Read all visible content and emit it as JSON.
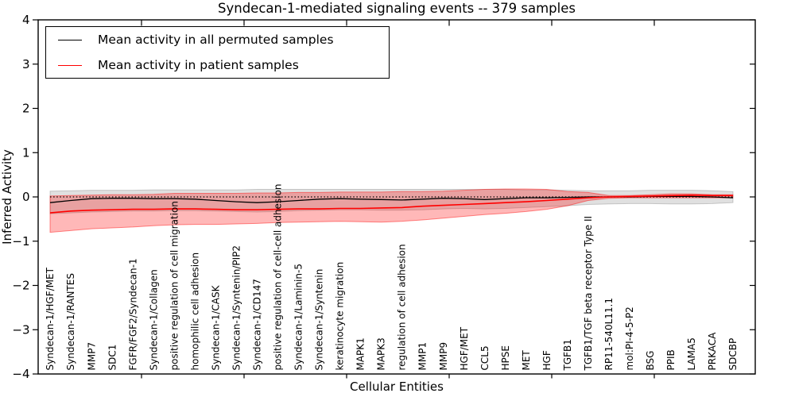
{
  "chart_data": {
    "type": "line",
    "title": "Syndecan-1-mediated signaling events -- 379 samples",
    "xlabel": "Cellular Entities",
    "ylabel": "Inferred Activity",
    "ylim": [
      -4,
      4
    ],
    "y_tick_labels": [
      "4",
      "3",
      "2",
      "1",
      "0",
      "−1",
      "−2",
      "−3",
      "−4"
    ],
    "grid": false,
    "legend_position": "upper left",
    "zero_reference_line": 0,
    "categories": [
      "Syndecan-1/HGF/MET",
      "Syndecan-1/RANTES",
      "MMP7",
      "SDC1",
      "FGFR/FGF2/Syndecan-1",
      "Syndecan-1/Collagen",
      "positive regulation of cell migration",
      "homophilic cell adhesion",
      "Syndecan-1/CASK",
      "Syndecan-1/Syntenin/PIP2",
      "Syndecan-1/CD147",
      "positive regulation of cell-cell adhesion",
      "Syndecan-1/Laminin-5",
      "Syndecan-1/Syntenin",
      "keratinocyte migration",
      "MAPK1",
      "MAPK3",
      "regulation of cell adhesion",
      "MMP1",
      "MMP9",
      "HGF/MET",
      "CCL5",
      "HPSE",
      "MET",
      "HGF",
      "TGFB1",
      "TGFB1/TGF beta receptor Type II",
      "RP11-540L11.1",
      "mol:PI-4-5-P2",
      "BSG",
      "PPIB",
      "LAMA5",
      "PRKACA",
      "SDCBP"
    ],
    "series": [
      {
        "name": "Mean activity in all permuted samples",
        "color": "#000000",
        "values": [
          -0.13,
          -0.08,
          -0.04,
          -0.03,
          -0.03,
          -0.04,
          -0.04,
          -0.05,
          -0.08,
          -0.11,
          -0.13,
          -0.11,
          -0.08,
          -0.05,
          -0.04,
          -0.05,
          -0.06,
          -0.07,
          -0.05,
          -0.03,
          -0.04,
          -0.06,
          -0.04,
          -0.02,
          -0.02,
          -0.01,
          0.0,
          0.0,
          0.0,
          0.01,
          0.01,
          0.01,
          0.0,
          -0.02
        ]
      },
      {
        "name": "Mean activity in patient samples",
        "color": "#ff0000",
        "values": [
          -0.36,
          -0.32,
          -0.3,
          -0.29,
          -0.28,
          -0.28,
          -0.27,
          -0.27,
          -0.28,
          -0.29,
          -0.29,
          -0.28,
          -0.27,
          -0.27,
          -0.26,
          -0.26,
          -0.25,
          -0.24,
          -0.21,
          -0.19,
          -0.17,
          -0.15,
          -0.13,
          -0.11,
          -0.08,
          -0.05,
          -0.02,
          0.0,
          0.01,
          0.02,
          0.03,
          0.04,
          0.03,
          0.03
        ]
      }
    ],
    "bands": [
      {
        "name": "permuted samples activity range",
        "fill": "rgba(0,0,0,0.12)",
        "edge": "rgba(0,0,0,0.18)",
        "top": [
          0.13,
          0.14,
          0.15,
          0.15,
          0.15,
          0.16,
          0.16,
          0.16,
          0.16,
          0.16,
          0.17,
          0.17,
          0.17,
          0.17,
          0.17,
          0.17,
          0.17,
          0.17,
          0.17,
          0.17,
          0.17,
          0.17,
          0.17,
          0.16,
          0.16,
          0.15,
          0.14,
          0.14,
          0.14,
          0.15,
          0.15,
          0.15,
          0.14,
          0.12
        ],
        "bottom": [
          -0.38,
          -0.36,
          -0.34,
          -0.33,
          -0.32,
          -0.32,
          -0.31,
          -0.31,
          -0.32,
          -0.33,
          -0.34,
          -0.33,
          -0.31,
          -0.3,
          -0.29,
          -0.29,
          -0.3,
          -0.3,
          -0.29,
          -0.27,
          -0.26,
          -0.27,
          -0.26,
          -0.24,
          -0.22,
          -0.2,
          -0.17,
          -0.16,
          -0.15,
          -0.15,
          -0.16,
          -0.16,
          -0.15,
          -0.13
        ]
      },
      {
        "name": "patient samples activity range",
        "fill": "rgba(255,0,0,0.28)",
        "edge": "rgba(255,0,0,0.45)",
        "top": [
          0.02,
          0.03,
          0.04,
          0.05,
          0.05,
          0.06,
          0.08,
          0.08,
          0.08,
          0.08,
          0.09,
          0.09,
          0.1,
          0.1,
          0.11,
          0.11,
          0.11,
          0.12,
          0.12,
          0.13,
          0.15,
          0.17,
          0.18,
          0.18,
          0.17,
          0.12,
          0.1,
          0.03,
          0.03,
          0.05,
          0.07,
          0.07,
          0.05,
          0.05
        ],
        "bottom": [
          -0.8,
          -0.76,
          -0.72,
          -0.7,
          -0.68,
          -0.65,
          -0.63,
          -0.62,
          -0.62,
          -0.61,
          -0.6,
          -0.58,
          -0.57,
          -0.56,
          -0.55,
          -0.56,
          -0.57,
          -0.55,
          -0.52,
          -0.48,
          -0.44,
          -0.4,
          -0.37,
          -0.33,
          -0.28,
          -0.2,
          -0.08,
          -0.03,
          -0.02,
          -0.02,
          -0.02,
          -0.02,
          -0.02,
          -0.02
        ]
      }
    ]
  }
}
